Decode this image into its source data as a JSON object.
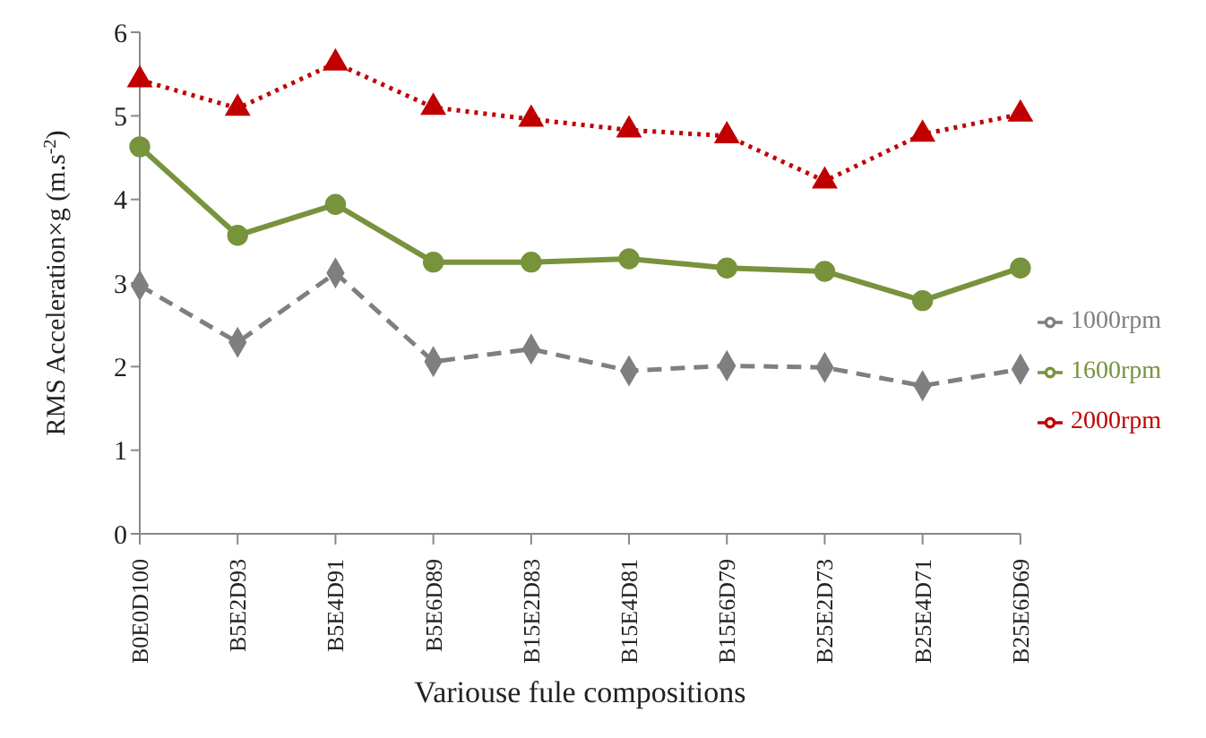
{
  "chart_data": {
    "type": "line",
    "xlabel": "Variouse fule compositions",
    "ylabel": "RMS Acceleration×g (m.s$^{-2}$)",
    "categories": [
      "B0E0D100",
      "B5E2D93",
      "B5E4D91",
      "B5E6D89",
      "B15E2D83",
      "B15E4D81",
      "B15E6D79",
      "B25E2D73",
      "B25E4D71",
      "B25E6D69"
    ],
    "ylim": [
      0,
      6
    ],
    "yticks": [
      0,
      1,
      2,
      3,
      4,
      5,
      6
    ],
    "grid": false,
    "legend": "right",
    "series": [
      {
        "name": "1000rpm",
        "color": "#7f7f7f",
        "marker": "diamond",
        "line_style": "dashed",
        "values": [
          2.97,
          2.29,
          3.12,
          2.06,
          2.21,
          1.95,
          2.01,
          1.99,
          1.77,
          1.97
        ]
      },
      {
        "name": "1600rpm",
        "color": "#77933c",
        "marker": "circle",
        "line_style": "solid",
        "values": [
          4.63,
          3.57,
          3.94,
          3.25,
          3.25,
          3.29,
          3.18,
          3.14,
          2.79,
          3.18
        ]
      },
      {
        "name": "2000rpm",
        "color": "#c00000",
        "marker": "triangle",
        "line_style": "dotted",
        "values": [
          5.43,
          5.09,
          5.63,
          5.1,
          4.96,
          4.83,
          4.76,
          4.22,
          4.78,
          5.02
        ]
      }
    ]
  }
}
